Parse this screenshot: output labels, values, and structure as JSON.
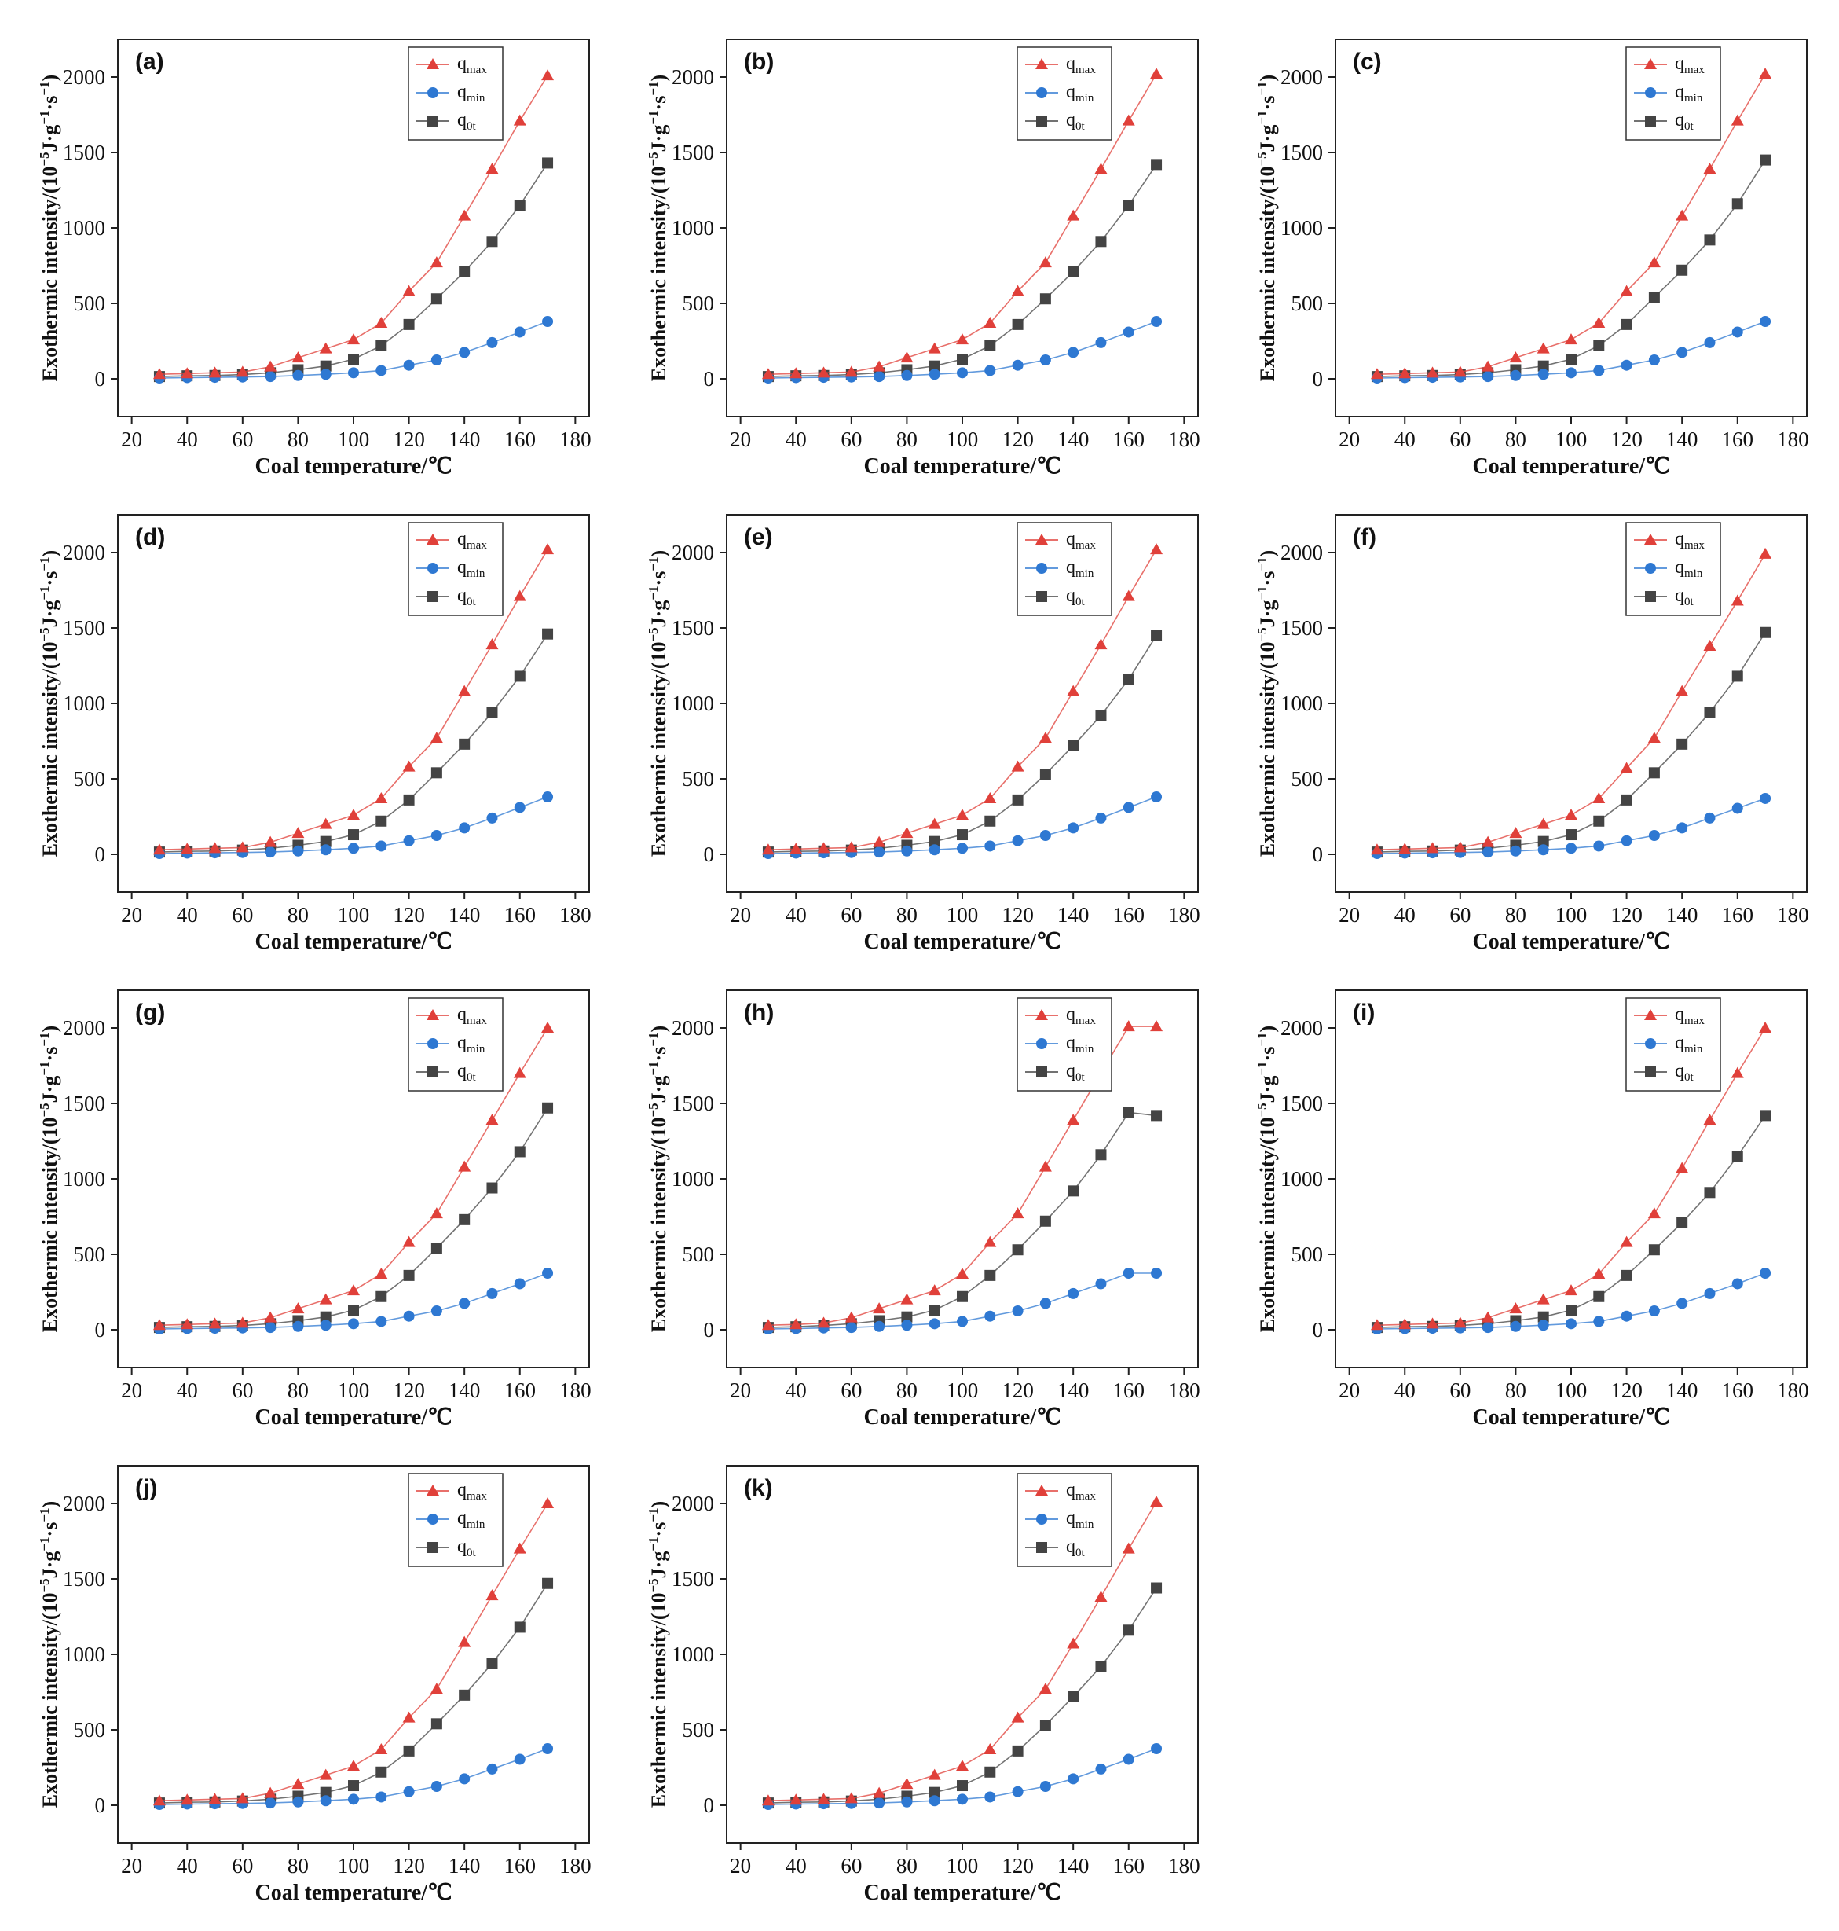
{
  "figure": {
    "y_axis_label_main": "Exothermic intensity/(10",
    "y_axis_label_exp1": "−5",
    "y_axis_label_mid": "J·g",
    "y_axis_label_exp2": "−1",
    "y_axis_label_mid2": "·s",
    "y_axis_label_exp3": "−1",
    "y_axis_label_end": ")",
    "x_axis_label": "Coal temperature/℃",
    "legend": [
      {
        "base": "q",
        "sub": "max",
        "color": "#e0403a",
        "marker": "triangle"
      },
      {
        "base": "q",
        "sub": "min",
        "color": "#2e78d2",
        "marker": "circle"
      },
      {
        "base": "q",
        "sub": "0t",
        "color": "#444444",
        "marker": "square"
      }
    ]
  },
  "chart_data": [
    {
      "type": "line",
      "panel": "(a)",
      "xlabel": "Coal temperature/℃",
      "ylabel": "Exothermic intensity/(10−5 J·g−1·s−1)",
      "xlim": [
        15,
        185
      ],
      "ylim": [
        -250,
        2250
      ],
      "xticks": [
        20,
        40,
        60,
        80,
        100,
        120,
        140,
        160,
        180
      ],
      "yticks": [
        0,
        500,
        1000,
        1500,
        2000
      ],
      "x": [
        30,
        40,
        50,
        60,
        70,
        80,
        90,
        100,
        110,
        120,
        130,
        140,
        150,
        160,
        170
      ],
      "series": [
        {
          "name": "qmax",
          "values": [
            30,
            35,
            40,
            45,
            80,
            140,
            200,
            260,
            370,
            580,
            770,
            1080,
            1390,
            1710,
            2010
          ]
        },
        {
          "name": "qmin",
          "values": [
            5,
            8,
            10,
            12,
            15,
            22,
            30,
            40,
            55,
            90,
            125,
            175,
            240,
            310,
            380
          ]
        },
        {
          "name": "q0t",
          "values": [
            15,
            20,
            22,
            28,
            40,
            60,
            85,
            130,
            220,
            360,
            530,
            710,
            910,
            1150,
            1430
          ]
        }
      ]
    },
    {
      "type": "line",
      "panel": "(b)",
      "xlabel": "Coal temperature/℃",
      "ylabel": "Exothermic intensity/(10−5 J·g−1·s−1)",
      "xlim": [
        15,
        185
      ],
      "ylim": [
        -250,
        2250
      ],
      "xticks": [
        20,
        40,
        60,
        80,
        100,
        120,
        140,
        160,
        180
      ],
      "yticks": [
        0,
        500,
        1000,
        1500,
        2000
      ],
      "x": [
        30,
        40,
        50,
        60,
        70,
        80,
        90,
        100,
        110,
        120,
        130,
        140,
        150,
        160,
        170
      ],
      "series": [
        {
          "name": "qmax",
          "values": [
            30,
            35,
            40,
            45,
            80,
            140,
            200,
            260,
            370,
            580,
            770,
            1080,
            1390,
            1710,
            2020
          ]
        },
        {
          "name": "qmin",
          "values": [
            5,
            8,
            10,
            12,
            15,
            22,
            30,
            40,
            55,
            90,
            125,
            175,
            240,
            310,
            380
          ]
        },
        {
          "name": "q0t",
          "values": [
            15,
            20,
            22,
            28,
            40,
            60,
            85,
            130,
            220,
            360,
            530,
            710,
            910,
            1150,
            1420
          ]
        }
      ]
    },
    {
      "type": "line",
      "panel": "(c)",
      "xlabel": "Coal temperature/℃",
      "ylabel": "Exothermic intensity/(10−5 J·g−1·s−1)",
      "xlim": [
        15,
        185
      ],
      "ylim": [
        -250,
        2250
      ],
      "xticks": [
        20,
        40,
        60,
        80,
        100,
        120,
        140,
        160,
        180
      ],
      "yticks": [
        0,
        500,
        1000,
        1500,
        2000
      ],
      "x": [
        30,
        40,
        50,
        60,
        70,
        80,
        90,
        100,
        110,
        120,
        130,
        140,
        150,
        160,
        170
      ],
      "series": [
        {
          "name": "qmax",
          "values": [
            30,
            35,
            40,
            45,
            80,
            140,
            200,
            260,
            370,
            580,
            770,
            1080,
            1390,
            1710,
            2020
          ]
        },
        {
          "name": "qmin",
          "values": [
            5,
            8,
            10,
            12,
            15,
            22,
            30,
            40,
            55,
            90,
            125,
            175,
            240,
            310,
            380
          ]
        },
        {
          "name": "q0t",
          "values": [
            15,
            20,
            22,
            28,
            40,
            60,
            85,
            130,
            220,
            360,
            540,
            720,
            920,
            1160,
            1450
          ]
        }
      ]
    },
    {
      "type": "line",
      "panel": "(d)",
      "xlabel": "Coal temperature/℃",
      "ylabel": "Exothermic intensity/(10−5 J·g−1·s−1)",
      "xlim": [
        15,
        185
      ],
      "ylim": [
        -250,
        2250
      ],
      "xticks": [
        20,
        40,
        60,
        80,
        100,
        120,
        140,
        160,
        180
      ],
      "yticks": [
        0,
        500,
        1000,
        1500,
        2000
      ],
      "x": [
        30,
        40,
        50,
        60,
        70,
        80,
        90,
        100,
        110,
        120,
        130,
        140,
        150,
        160,
        170
      ],
      "series": [
        {
          "name": "qmax",
          "values": [
            30,
            35,
            40,
            45,
            80,
            140,
            200,
            260,
            370,
            580,
            770,
            1080,
            1390,
            1710,
            2020
          ]
        },
        {
          "name": "qmin",
          "values": [
            5,
            8,
            10,
            12,
            15,
            22,
            30,
            40,
            55,
            90,
            125,
            175,
            240,
            310,
            380
          ]
        },
        {
          "name": "q0t",
          "values": [
            15,
            20,
            22,
            28,
            40,
            60,
            85,
            130,
            220,
            360,
            540,
            730,
            940,
            1180,
            1460
          ]
        }
      ]
    },
    {
      "type": "line",
      "panel": "(e)",
      "xlabel": "Coal temperature/℃",
      "ylabel": "Exothermic intensity/(10−5 J·g−1·s−1)",
      "xlim": [
        15,
        185
      ],
      "ylim": [
        -250,
        2250
      ],
      "xticks": [
        20,
        40,
        60,
        80,
        100,
        120,
        140,
        160,
        180
      ],
      "yticks": [
        0,
        500,
        1000,
        1500,
        2000
      ],
      "x": [
        30,
        40,
        50,
        60,
        70,
        80,
        90,
        100,
        110,
        120,
        130,
        140,
        150,
        160,
        170
      ],
      "series": [
        {
          "name": "qmax",
          "values": [
            30,
            35,
            40,
            45,
            80,
            140,
            200,
            260,
            370,
            580,
            770,
            1080,
            1390,
            1710,
            2020
          ]
        },
        {
          "name": "qmin",
          "values": [
            5,
            8,
            10,
            12,
            15,
            22,
            30,
            40,
            55,
            90,
            125,
            175,
            240,
            310,
            380
          ]
        },
        {
          "name": "q0t",
          "values": [
            15,
            20,
            22,
            28,
            40,
            60,
            85,
            130,
            220,
            360,
            530,
            720,
            920,
            1160,
            1450
          ]
        }
      ]
    },
    {
      "type": "line",
      "panel": "(f)",
      "xlabel": "Coal temperature/℃",
      "ylabel": "Exothermic intensity/(10−5 J·g−1·s−1)",
      "xlim": [
        15,
        185
      ],
      "ylim": [
        -250,
        2250
      ],
      "xticks": [
        20,
        40,
        60,
        80,
        100,
        120,
        140,
        160,
        180
      ],
      "yticks": [
        0,
        500,
        1000,
        1500,
        2000
      ],
      "x": [
        30,
        40,
        50,
        60,
        70,
        80,
        90,
        100,
        110,
        120,
        130,
        140,
        150,
        160,
        170
      ],
      "series": [
        {
          "name": "qmax",
          "values": [
            30,
            35,
            40,
            45,
            80,
            140,
            200,
            260,
            370,
            570,
            770,
            1080,
            1380,
            1680,
            1990
          ]
        },
        {
          "name": "qmin",
          "values": [
            5,
            8,
            10,
            12,
            15,
            22,
            30,
            40,
            55,
            90,
            125,
            175,
            240,
            305,
            370
          ]
        },
        {
          "name": "q0t",
          "values": [
            15,
            20,
            22,
            28,
            40,
            60,
            85,
            130,
            220,
            360,
            540,
            730,
            940,
            1180,
            1470
          ]
        }
      ]
    },
    {
      "type": "line",
      "panel": "(g)",
      "xlabel": "Coal temperature/℃",
      "ylabel": "Exothermic intensity/(10−5 J·g−1·s−1)",
      "xlim": [
        15,
        185
      ],
      "ylim": [
        -250,
        2250
      ],
      "xticks": [
        20,
        40,
        60,
        80,
        100,
        120,
        140,
        160,
        180
      ],
      "yticks": [
        0,
        500,
        1000,
        1500,
        2000
      ],
      "x": [
        30,
        40,
        50,
        60,
        70,
        80,
        90,
        100,
        110,
        120,
        130,
        140,
        150,
        160,
        170
      ],
      "series": [
        {
          "name": "qmax",
          "values": [
            30,
            35,
            40,
            45,
            80,
            140,
            200,
            260,
            370,
            580,
            770,
            1080,
            1390,
            1700,
            2000
          ]
        },
        {
          "name": "qmin",
          "values": [
            5,
            8,
            10,
            12,
            15,
            22,
            30,
            40,
            55,
            90,
            125,
            175,
            240,
            305,
            375
          ]
        },
        {
          "name": "q0t",
          "values": [
            15,
            20,
            22,
            28,
            40,
            60,
            85,
            130,
            220,
            360,
            540,
            730,
            940,
            1180,
            1470
          ]
        }
      ]
    },
    {
      "type": "line",
      "panel": "(h)",
      "xlabel": "Coal temperature/℃",
      "ylabel": "Exothermic intensity/(10−5 J·g−1·s−1)",
      "xlim": [
        15,
        185
      ],
      "ylim": [
        -250,
        2250
      ],
      "xticks": [
        20,
        40,
        60,
        80,
        100,
        120,
        140,
        160,
        180
      ],
      "yticks": [
        0,
        500,
        1000,
        1500,
        2000
      ],
      "x": [
        30,
        40,
        50,
        60,
        70,
        80,
        90,
        100,
        110,
        120,
        130,
        140,
        150,
        160,
        170
      ],
      "series": [
        {
          "name": "qmax",
          "values": [
            30,
            35,
            45,
            80,
            140,
            200,
            260,
            370,
            580,
            770,
            1080,
            1390,
            1700,
            2010,
            2010
          ]
        },
        {
          "name": "qmin",
          "values": [
            5,
            8,
            12,
            15,
            22,
            30,
            40,
            55,
            90,
            125,
            175,
            240,
            305,
            375,
            375
          ]
        },
        {
          "name": "q0t",
          "values": [
            15,
            20,
            28,
            40,
            60,
            85,
            130,
            220,
            360,
            530,
            720,
            920,
            1160,
            1440,
            1420
          ]
        }
      ]
    },
    {
      "type": "line",
      "panel": "(i)",
      "xlabel": "Coal temperature/℃",
      "ylabel": "Exothermic intensity/(10−5 J·g−1·s−1)",
      "xlim": [
        15,
        185
      ],
      "ylim": [
        -250,
        2250
      ],
      "xticks": [
        20,
        40,
        60,
        80,
        100,
        120,
        140,
        160,
        180
      ],
      "yticks": [
        0,
        500,
        1000,
        1500,
        2000
      ],
      "x": [
        30,
        40,
        50,
        60,
        70,
        80,
        90,
        100,
        110,
        120,
        130,
        140,
        150,
        160,
        170
      ],
      "series": [
        {
          "name": "qmax",
          "values": [
            30,
            35,
            40,
            45,
            80,
            140,
            200,
            260,
            370,
            580,
            770,
            1070,
            1390,
            1700,
            2000
          ]
        },
        {
          "name": "qmin",
          "values": [
            5,
            8,
            10,
            12,
            15,
            22,
            30,
            40,
            55,
            90,
            125,
            175,
            240,
            305,
            375
          ]
        },
        {
          "name": "q0t",
          "values": [
            15,
            20,
            22,
            28,
            40,
            60,
            85,
            130,
            220,
            360,
            530,
            710,
            910,
            1150,
            1420
          ]
        }
      ]
    },
    {
      "type": "line",
      "panel": "(j)",
      "xlabel": "Coal temperature/℃",
      "ylabel": "Exothermic intensity/(10−5 J·g−1·s−1)",
      "xlim": [
        15,
        185
      ],
      "ylim": [
        -250,
        2250
      ],
      "xticks": [
        20,
        40,
        60,
        80,
        100,
        120,
        140,
        160,
        180
      ],
      "yticks": [
        0,
        500,
        1000,
        1500,
        2000
      ],
      "x": [
        30,
        40,
        50,
        60,
        70,
        80,
        90,
        100,
        110,
        120,
        130,
        140,
        150,
        160,
        170
      ],
      "series": [
        {
          "name": "qmax",
          "values": [
            30,
            35,
            40,
            45,
            80,
            140,
            200,
            260,
            370,
            580,
            770,
            1080,
            1390,
            1700,
            2000
          ]
        },
        {
          "name": "qmin",
          "values": [
            5,
            8,
            10,
            12,
            15,
            22,
            30,
            40,
            55,
            90,
            125,
            175,
            240,
            305,
            375
          ]
        },
        {
          "name": "q0t",
          "values": [
            15,
            20,
            22,
            28,
            40,
            60,
            85,
            130,
            220,
            360,
            540,
            730,
            940,
            1180,
            1470
          ]
        }
      ]
    },
    {
      "type": "line",
      "panel": "(k)",
      "xlabel": "Coal temperature/℃",
      "ylabel": "Exothermic intensity/(10−5 J·g−1·s−1)",
      "xlim": [
        15,
        185
      ],
      "ylim": [
        -250,
        2250
      ],
      "xticks": [
        20,
        40,
        60,
        80,
        100,
        120,
        140,
        160,
        180
      ],
      "yticks": [
        0,
        500,
        1000,
        1500,
        2000
      ],
      "x": [
        30,
        40,
        50,
        60,
        70,
        80,
        90,
        100,
        110,
        120,
        130,
        140,
        150,
        160,
        170
      ],
      "series": [
        {
          "name": "qmax",
          "values": [
            30,
            35,
            40,
            45,
            80,
            140,
            200,
            260,
            370,
            580,
            770,
            1070,
            1380,
            1700,
            2010
          ]
        },
        {
          "name": "qmin",
          "values": [
            5,
            8,
            10,
            12,
            15,
            22,
            30,
            40,
            55,
            90,
            125,
            175,
            240,
            305,
            375
          ]
        },
        {
          "name": "q0t",
          "values": [
            15,
            20,
            22,
            28,
            40,
            60,
            85,
            130,
            220,
            360,
            530,
            720,
            920,
            1160,
            1440
          ]
        }
      ]
    }
  ]
}
